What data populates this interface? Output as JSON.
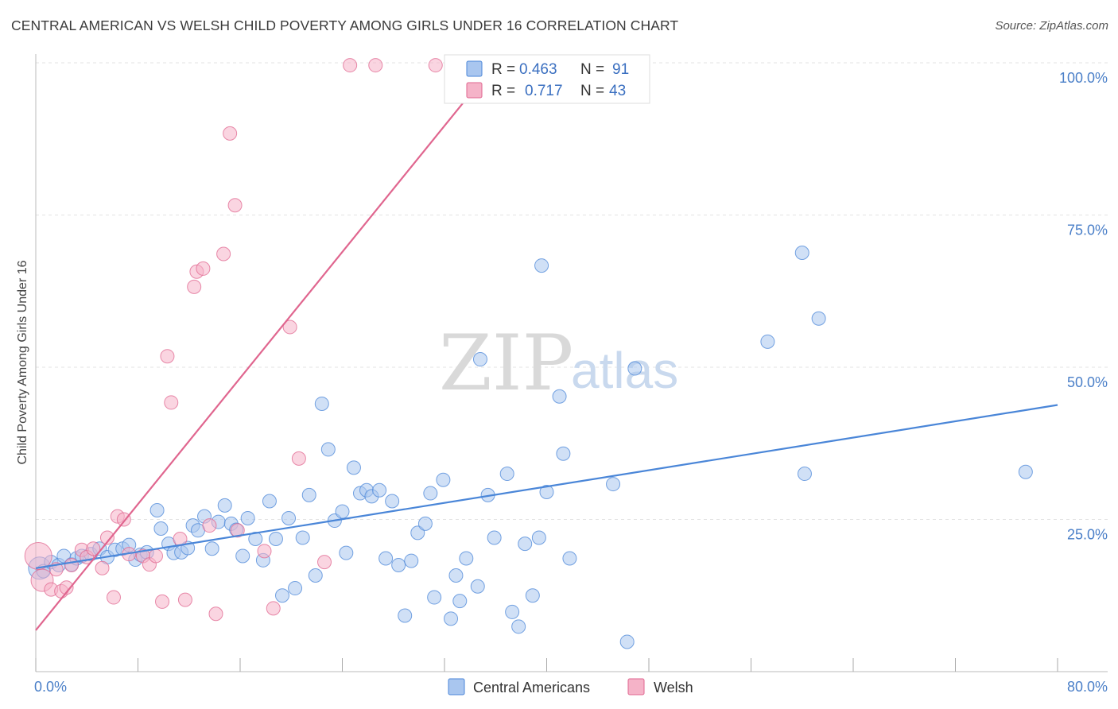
{
  "title": "CENTRAL AMERICAN VS WELSH CHILD POVERTY AMONG GIRLS UNDER 16 CORRELATION CHART",
  "source": "Source: ZipAtlas.com",
  "watermark": {
    "zip": "ZIP",
    "atlas": "atlas"
  },
  "colors": {
    "blue": "#4a86d8",
    "blue_fill": "#a9c6ef",
    "pink": "#e0668f",
    "pink_fill": "#f5b3c8",
    "tick_text": "#4a7fc8"
  },
  "legend": {
    "rows": [
      {
        "r_label": "R =",
        "r_value": "0.463",
        "n_label": "N =",
        "n_value": "91"
      },
      {
        "r_label": "R =",
        "r_value": "0.717",
        "n_label": "N =",
        "n_value": "43"
      }
    ]
  },
  "bottom_legend": [
    "Central Americans",
    "Welsh"
  ],
  "chart_data": {
    "type": "scatter",
    "title": "CENTRAL AMERICAN VS WELSH CHILD POVERTY AMONG GIRLS UNDER 16 CORRELATION CHART",
    "xlabel": "",
    "ylabel": "Child Poverty Among Girls Under 16",
    "xlim": [
      0,
      80
    ],
    "ylim": [
      0,
      100
    ],
    "x_ticks": [
      "0.0%",
      "80.0%"
    ],
    "y_ticks": [
      "25.0%",
      "50.0%",
      "75.0%",
      "100.0%"
    ],
    "y_tick_values": [
      25,
      50,
      75,
      100
    ],
    "grid": true,
    "legend_position": "top-center",
    "series": [
      {
        "name": "Central Americans",
        "color": "#4a86d8",
        "trend": {
          "x": [
            0,
            80
          ],
          "y": [
            17.0,
            43.8
          ]
        },
        "points": [
          {
            "x": 0.3,
            "y": 17.0,
            "s": 2
          },
          {
            "x": 0.6,
            "y": 16.5,
            "s": 1
          },
          {
            "x": 1.2,
            "y": 18.0,
            "s": 1
          },
          {
            "x": 1.8,
            "y": 17.5,
            "s": 1
          },
          {
            "x": 2.2,
            "y": 19.0,
            "s": 1
          },
          {
            "x": 2.8,
            "y": 17.6,
            "s": 1
          },
          {
            "x": 3.2,
            "y": 18.6,
            "s": 1
          },
          {
            "x": 3.6,
            "y": 19.0,
            "s": 1
          },
          {
            "x": 4.3,
            "y": 19.3,
            "s": 1
          },
          {
            "x": 5.0,
            "y": 20.2,
            "s": 1
          },
          {
            "x": 5.6,
            "y": 18.8,
            "s": 1
          },
          {
            "x": 6.2,
            "y": 20.0,
            "s": 1
          },
          {
            "x": 6.8,
            "y": 20.2,
            "s": 1
          },
          {
            "x": 7.3,
            "y": 20.8,
            "s": 1
          },
          {
            "x": 7.8,
            "y": 18.4,
            "s": 1
          },
          {
            "x": 8.2,
            "y": 19.2,
            "s": 1
          },
          {
            "x": 8.7,
            "y": 19.6,
            "s": 1
          },
          {
            "x": 9.5,
            "y": 26.5,
            "s": 1
          },
          {
            "x": 9.8,
            "y": 23.5,
            "s": 1
          },
          {
            "x": 10.4,
            "y": 21.0,
            "s": 1
          },
          {
            "x": 10.8,
            "y": 19.5,
            "s": 1
          },
          {
            "x": 11.4,
            "y": 19.6,
            "s": 1
          },
          {
            "x": 11.9,
            "y": 20.3,
            "s": 1
          },
          {
            "x": 12.3,
            "y": 24.0,
            "s": 1
          },
          {
            "x": 12.7,
            "y": 23.2,
            "s": 1
          },
          {
            "x": 13.2,
            "y": 25.5,
            "s": 1
          },
          {
            "x": 13.8,
            "y": 20.2,
            "s": 1
          },
          {
            "x": 14.3,
            "y": 24.6,
            "s": 1
          },
          {
            "x": 14.8,
            "y": 27.3,
            "s": 1
          },
          {
            "x": 15.3,
            "y": 24.3,
            "s": 1
          },
          {
            "x": 15.7,
            "y": 23.3,
            "s": 1
          },
          {
            "x": 16.2,
            "y": 19.0,
            "s": 1
          },
          {
            "x": 16.6,
            "y": 25.2,
            "s": 1
          },
          {
            "x": 17.2,
            "y": 21.8,
            "s": 1
          },
          {
            "x": 17.8,
            "y": 18.3,
            "s": 1
          },
          {
            "x": 18.3,
            "y": 28.0,
            "s": 1
          },
          {
            "x": 18.8,
            "y": 21.8,
            "s": 1
          },
          {
            "x": 19.3,
            "y": 12.5,
            "s": 1
          },
          {
            "x": 19.8,
            "y": 25.2,
            "s": 1
          },
          {
            "x": 20.3,
            "y": 13.7,
            "s": 1
          },
          {
            "x": 20.9,
            "y": 22.0,
            "s": 1
          },
          {
            "x": 21.4,
            "y": 29.0,
            "s": 1
          },
          {
            "x": 21.9,
            "y": 15.8,
            "s": 1
          },
          {
            "x": 22.4,
            "y": 44.0,
            "s": 1
          },
          {
            "x": 22.9,
            "y": 36.5,
            "s": 1
          },
          {
            "x": 23.4,
            "y": 24.8,
            "s": 1
          },
          {
            "x": 24.0,
            "y": 26.3,
            "s": 1
          },
          {
            "x": 24.3,
            "y": 19.5,
            "s": 1
          },
          {
            "x": 24.9,
            "y": 33.5,
            "s": 1
          },
          {
            "x": 25.4,
            "y": 29.3,
            "s": 1
          },
          {
            "x": 25.9,
            "y": 29.8,
            "s": 1
          },
          {
            "x": 26.3,
            "y": 28.8,
            "s": 1
          },
          {
            "x": 26.9,
            "y": 29.8,
            "s": 1
          },
          {
            "x": 27.4,
            "y": 18.6,
            "s": 1
          },
          {
            "x": 27.9,
            "y": 28.0,
            "s": 1
          },
          {
            "x": 28.4,
            "y": 17.5,
            "s": 1
          },
          {
            "x": 28.9,
            "y": 9.2,
            "s": 1
          },
          {
            "x": 29.4,
            "y": 18.2,
            "s": 1
          },
          {
            "x": 29.9,
            "y": 22.8,
            "s": 1
          },
          {
            "x": 30.5,
            "y": 24.3,
            "s": 1
          },
          {
            "x": 30.9,
            "y": 29.3,
            "s": 1
          },
          {
            "x": 31.2,
            "y": 12.2,
            "s": 1
          },
          {
            "x": 31.9,
            "y": 31.5,
            "s": 1
          },
          {
            "x": 32.5,
            "y": 8.7,
            "s": 1
          },
          {
            "x": 32.9,
            "y": 15.8,
            "s": 1
          },
          {
            "x": 33.2,
            "y": 11.6,
            "s": 1
          },
          {
            "x": 33.7,
            "y": 18.6,
            "s": 1
          },
          {
            "x": 34.6,
            "y": 14.0,
            "s": 1
          },
          {
            "x": 34.8,
            "y": 51.3,
            "s": 1
          },
          {
            "x": 35.4,
            "y": 29.0,
            "s": 1
          },
          {
            "x": 35.9,
            "y": 22.0,
            "s": 1
          },
          {
            "x": 36.9,
            "y": 32.5,
            "s": 1
          },
          {
            "x": 37.3,
            "y": 9.8,
            "s": 1
          },
          {
            "x": 37.8,
            "y": 7.4,
            "s": 1
          },
          {
            "x": 38.3,
            "y": 21.0,
            "s": 1
          },
          {
            "x": 38.9,
            "y": 12.5,
            "s": 1
          },
          {
            "x": 39.4,
            "y": 22.0,
            "s": 1
          },
          {
            "x": 39.6,
            "y": 66.7,
            "s": 1
          },
          {
            "x": 40.0,
            "y": 29.5,
            "s": 1
          },
          {
            "x": 41.0,
            "y": 45.2,
            "s": 1
          },
          {
            "x": 41.3,
            "y": 35.8,
            "s": 1
          },
          {
            "x": 41.8,
            "y": 18.6,
            "s": 1
          },
          {
            "x": 45.2,
            "y": 30.8,
            "s": 1
          },
          {
            "x": 46.3,
            "y": 4.9,
            "s": 1
          },
          {
            "x": 46.9,
            "y": 49.8,
            "s": 1
          },
          {
            "x": 57.3,
            "y": 54.2,
            "s": 1
          },
          {
            "x": 60.0,
            "y": 68.8,
            "s": 1
          },
          {
            "x": 60.2,
            "y": 32.5,
            "s": 1
          },
          {
            "x": 61.3,
            "y": 58.0,
            "s": 1
          },
          {
            "x": 77.5,
            "y": 32.8,
            "s": 1
          }
        ]
      },
      {
        "name": "Welsh",
        "color": "#e0668f",
        "trend": {
          "x": [
            0,
            36
          ],
          "y": [
            6.8,
            100
          ]
        },
        "points": [
          {
            "x": 0.2,
            "y": 19.0,
            "s": 3
          },
          {
            "x": 0.5,
            "y": 15.0,
            "s": 2
          },
          {
            "x": 1.2,
            "y": 13.5,
            "s": 1
          },
          {
            "x": 1.6,
            "y": 16.8,
            "s": 1
          },
          {
            "x": 2.0,
            "y": 13.2,
            "s": 1
          },
          {
            "x": 2.4,
            "y": 13.8,
            "s": 1
          },
          {
            "x": 2.8,
            "y": 17.5,
            "s": 1
          },
          {
            "x": 3.6,
            "y": 20.0,
            "s": 1
          },
          {
            "x": 4.0,
            "y": 18.8,
            "s": 1
          },
          {
            "x": 4.5,
            "y": 20.2,
            "s": 1
          },
          {
            "x": 5.2,
            "y": 17.0,
            "s": 1
          },
          {
            "x": 5.6,
            "y": 22.0,
            "s": 1
          },
          {
            "x": 6.1,
            "y": 12.2,
            "s": 1
          },
          {
            "x": 6.4,
            "y": 25.5,
            "s": 1
          },
          {
            "x": 6.9,
            "y": 25.0,
            "s": 1
          },
          {
            "x": 7.3,
            "y": 19.3,
            "s": 1
          },
          {
            "x": 8.4,
            "y": 19.0,
            "s": 1
          },
          {
            "x": 8.9,
            "y": 17.6,
            "s": 1
          },
          {
            "x": 9.4,
            "y": 19.0,
            "s": 1
          },
          {
            "x": 9.9,
            "y": 11.5,
            "s": 1
          },
          {
            "x": 10.3,
            "y": 51.8,
            "s": 1
          },
          {
            "x": 10.6,
            "y": 44.2,
            "s": 1
          },
          {
            "x": 11.3,
            "y": 21.8,
            "s": 1
          },
          {
            "x": 11.7,
            "y": 11.8,
            "s": 1
          },
          {
            "x": 12.4,
            "y": 63.2,
            "s": 1
          },
          {
            "x": 12.6,
            "y": 65.7,
            "s": 1
          },
          {
            "x": 13.1,
            "y": 66.2,
            "s": 1
          },
          {
            "x": 13.6,
            "y": 24.0,
            "s": 1
          },
          {
            "x": 14.1,
            "y": 9.5,
            "s": 1
          },
          {
            "x": 14.7,
            "y": 68.6,
            "s": 1
          },
          {
            "x": 15.2,
            "y": 88.4,
            "s": 1
          },
          {
            "x": 15.6,
            "y": 76.6,
            "s": 1
          },
          {
            "x": 15.8,
            "y": 23.2,
            "s": 1
          },
          {
            "x": 17.9,
            "y": 19.8,
            "s": 1
          },
          {
            "x": 18.6,
            "y": 10.4,
            "s": 1
          },
          {
            "x": 19.9,
            "y": 56.6,
            "s": 1
          },
          {
            "x": 20.6,
            "y": 35.0,
            "s": 1
          },
          {
            "x": 22.6,
            "y": 18.0,
            "s": 1
          },
          {
            "x": 24.6,
            "y": 99.6,
            "s": 1
          },
          {
            "x": 26.6,
            "y": 99.6,
            "s": 1
          },
          {
            "x": 31.3,
            "y": 99.6,
            "s": 1
          },
          {
            "x": 34.8,
            "y": 99.6,
            "s": 1
          },
          {
            "x": 37.0,
            "y": 99.6,
            "s": 1
          }
        ]
      }
    ]
  }
}
